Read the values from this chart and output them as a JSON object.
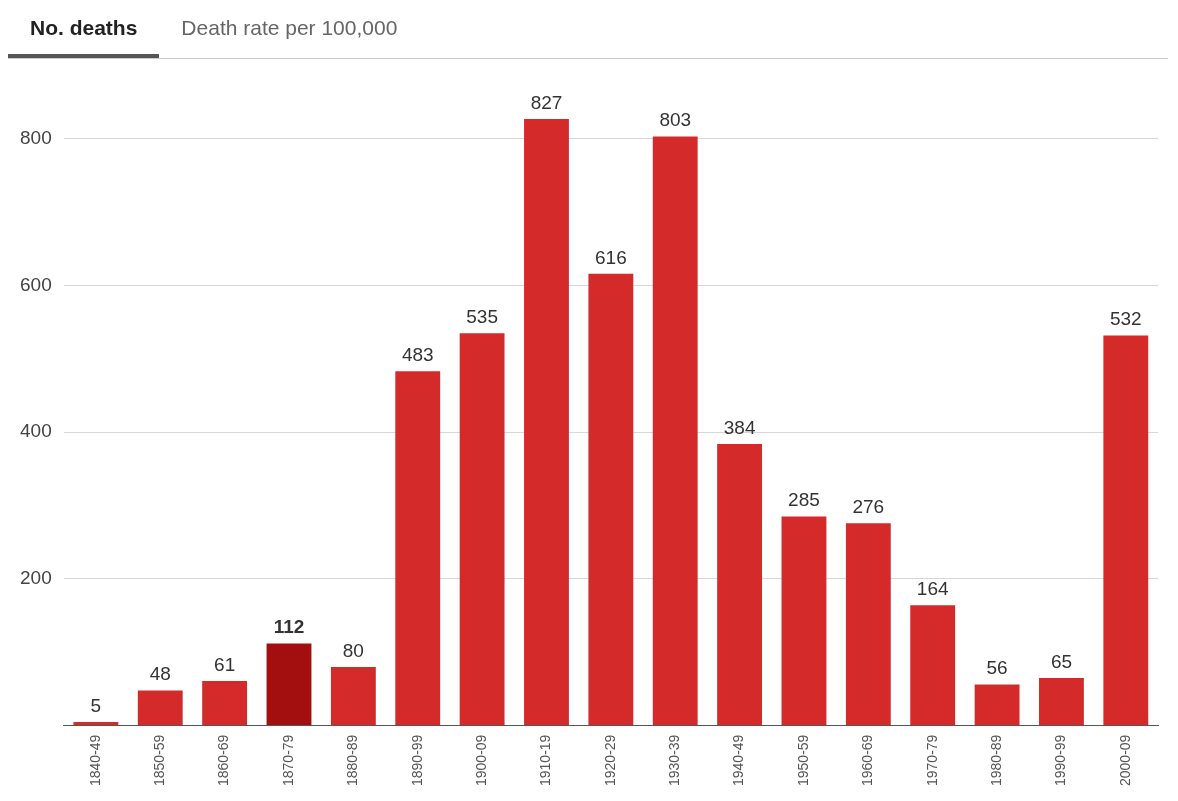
{
  "chart_data": {
    "type": "bar",
    "annotations": [
      "No. deaths",
      "Death rate per 100,000"
    ],
    "categories": [
      "1840-49",
      "1850-59",
      "1860-69",
      "1870-79",
      "1880-89",
      "1890-99",
      "1900-09",
      "1910-19",
      "1920-29",
      "1930-39",
      "1940-49",
      "1950-59",
      "1960-69",
      "1970-79",
      "1980-89",
      "1990-99",
      "2000-09"
    ],
    "values": [
      5,
      48,
      61,
      112,
      80,
      483,
      535,
      827,
      616,
      803,
      384,
      285,
      276,
      164,
      56,
      65,
      532
    ],
    "colors": [
      "#d42a2a",
      "#d42a2a",
      "#d42a2a",
      "#a30f0f",
      "#d42a2a",
      "#d42a2a",
      "#d42a2a",
      "#d42a2a",
      "#d42a2a",
      "#d42a2a",
      "#d42a2a",
      "#d42a2a",
      "#d42a2a",
      "#d42a2a",
      "#d42a2a",
      "#d42a2a",
      "#d42a2a"
    ],
    "ylim": [
      0,
      827
    ],
    "yticks": [
      {
        "value": 0,
        "label": null
      },
      200,
      400,
      600,
      800
    ],
    "grid": "y",
    "data_labels": true,
    "legend": false
  }
}
